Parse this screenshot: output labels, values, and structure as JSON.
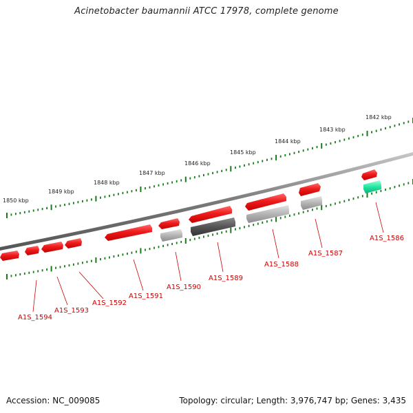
{
  "title": "Acinetobacter baumannii ATCC 17978, complete genome",
  "accession": "Accession: NC_009085",
  "summary": "Topology: circular; Length: 3,976,747 bp; Genes: 3,435",
  "colors": {
    "forward_gene": "#e8141c",
    "reverse_gene_light": "#b0b0b0",
    "reverse_gene_dark": "#555555",
    "rna_gene": "#1ee3a0",
    "tick": "#1a7a1a",
    "backbone": "#777777",
    "label": "#cc0000"
  },
  "scale_labels": [
    "1842 kbp",
    "1843 kbp",
    "1844 kbp",
    "1845 kbp",
    "1846 kbp",
    "1847 kbp",
    "1848 kbp",
    "1849 kbp",
    "1850 kbp"
  ],
  "gene_labels": [
    "A1S_1586",
    "A1S_1587",
    "A1S_1588",
    "A1S_1589",
    "A1S_1590",
    "A1S_1591",
    "A1S_1592",
    "A1S_1593",
    "A1S_1594"
  ]
}
